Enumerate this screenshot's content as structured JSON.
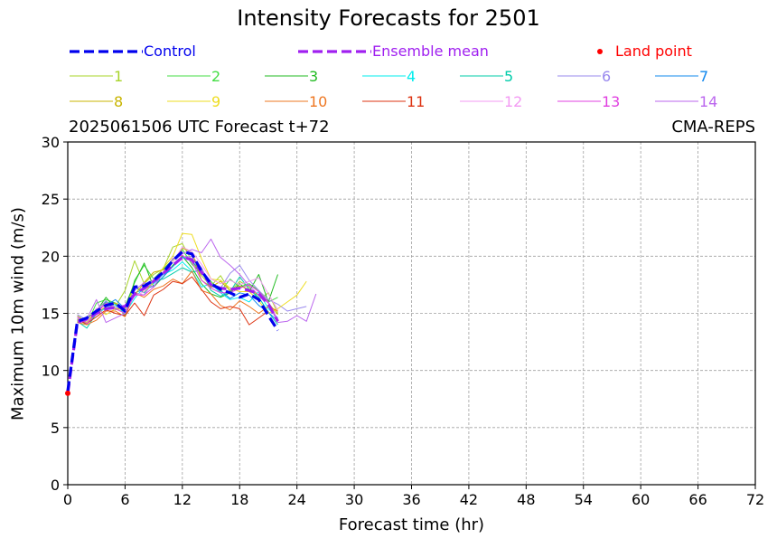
{
  "chart_data": {
    "type": "line",
    "title": "Intensity Forecasts for 2501",
    "subtitle_left": "2025061506 UTC Forecast t+72",
    "subtitle_right": "CMA-REPS",
    "xlabel": "Forecast time (hr)",
    "ylabel": "Maximum 10m wind (m/s)",
    "xlim": [
      0,
      72
    ],
    "ylim": [
      0,
      30
    ],
    "xticks": [
      0,
      6,
      12,
      18,
      24,
      30,
      36,
      42,
      48,
      54,
      60,
      66,
      72
    ],
    "yticks": [
      0,
      5,
      10,
      15,
      20,
      25,
      30
    ],
    "grid": true,
    "legend_position": "top",
    "control": {
      "name": "Control",
      "color": "#0000ee",
      "x": [
        0,
        1,
        2,
        3,
        4,
        5,
        6,
        7,
        8,
        9,
        10,
        11,
        12,
        13,
        14,
        15,
        16,
        17,
        18,
        19,
        20,
        21,
        22
      ],
      "y": [
        8.2,
        14.3,
        14.6,
        15.2,
        15.7,
        15.9,
        15.2,
        17.3,
        17.4,
        17.9,
        18.6,
        19.6,
        20.4,
        20.2,
        18.7,
        17.6,
        17.1,
        16.8,
        16.4,
        16.7,
        16.2,
        14.8,
        13.5
      ]
    },
    "ensemble_mean": {
      "name": "Ensemble mean",
      "color": "#a020f0",
      "x": [
        0,
        1,
        2,
        3,
        4,
        5,
        6,
        7,
        8,
        9,
        10,
        11,
        12,
        13,
        14,
        15,
        16,
        17,
        18,
        19,
        20,
        21,
        22
      ],
      "y": [
        8.0,
        14.2,
        14.5,
        15.0,
        15.4,
        15.5,
        15.6,
        16.7,
        17.2,
        17.8,
        18.5,
        19.2,
        19.9,
        19.7,
        18.6,
        17.5,
        17.2,
        17.1,
        17.2,
        17.0,
        16.7,
        15.8,
        14.3
      ]
    },
    "land_point": {
      "name": "Land point",
      "color": "#ff0000",
      "x": [
        0
      ],
      "y": [
        8.0
      ]
    },
    "members": [
      {
        "name": "1",
        "color": "#a8d42a",
        "x": [
          1,
          2,
          3,
          4,
          5,
          6,
          7,
          8,
          9,
          10,
          11,
          12,
          13,
          14,
          15,
          16,
          17,
          18,
          19,
          20,
          21,
          22
        ],
        "y": [
          14.8,
          14.2,
          15.3,
          16.0,
          15.6,
          17.0,
          19.6,
          17.6,
          18.4,
          18.9,
          20.8,
          21.1,
          19.6,
          18.3,
          17.4,
          18.3,
          16.9,
          17.8,
          17.3,
          16.2,
          16.8,
          15.0
        ]
      },
      {
        "name": "2",
        "color": "#44dd44",
        "x": [
          1,
          2,
          3,
          4,
          5,
          6,
          7,
          8,
          9,
          10,
          11,
          12,
          13,
          14,
          15,
          16,
          17,
          18,
          19,
          20,
          21,
          22
        ],
        "y": [
          14.5,
          14.0,
          15.9,
          16.2,
          15.9,
          14.8,
          17.9,
          19.2,
          18.0,
          18.9,
          19.7,
          20.6,
          19.3,
          18.5,
          17.8,
          16.9,
          18.0,
          17.3,
          17.6,
          17.0,
          16.0,
          16.4
        ]
      },
      {
        "name": "3",
        "color": "#22bb22",
        "x": [
          1,
          2,
          3,
          4,
          5,
          6,
          7,
          8,
          9,
          10,
          11,
          12,
          13,
          14,
          15,
          16,
          17,
          18,
          19,
          20,
          21,
          22
        ],
        "y": [
          14.2,
          14.6,
          15.2,
          16.4,
          15.4,
          15.6,
          17.7,
          19.4,
          17.3,
          18.2,
          19.2,
          20.0,
          19.0,
          17.6,
          16.7,
          16.4,
          16.8,
          17.6,
          16.9,
          18.4,
          16.0,
          18.4
        ]
      },
      {
        "name": "4",
        "color": "#00eeee",
        "x": [
          1,
          2,
          3,
          4,
          5,
          6,
          7,
          8,
          9,
          10,
          11,
          12,
          13,
          14,
          15,
          16,
          17,
          18,
          19,
          20,
          21,
          22
        ],
        "y": [
          14.6,
          14.1,
          14.9,
          15.5,
          15.7,
          15.0,
          16.3,
          17.3,
          17.6,
          18.4,
          18.8,
          19.5,
          18.7,
          17.3,
          17.6,
          16.8,
          16.2,
          16.4,
          16.0,
          16.9,
          15.4,
          14.6
        ]
      },
      {
        "name": "5",
        "color": "#00ccaa",
        "x": [
          1,
          2,
          3,
          4,
          5,
          6,
          7,
          8,
          9,
          10,
          11,
          12,
          13,
          14,
          15,
          16,
          17,
          18,
          19,
          20,
          21,
          22
        ],
        "y": [
          14.3,
          13.7,
          15.0,
          16.0,
          15.8,
          15.3,
          17.3,
          16.8,
          17.9,
          18.0,
          18.5,
          19.0,
          18.6,
          18.8,
          17.0,
          16.5,
          16.9,
          18.2,
          17.1,
          16.4,
          15.1,
          14.0
        ]
      },
      {
        "name": "6",
        "color": "#9988ee",
        "x": [
          1,
          2,
          3,
          4,
          5,
          6,
          7,
          8,
          9,
          10,
          11,
          12,
          13,
          14,
          15,
          16,
          17,
          18,
          19,
          20,
          21,
          22,
          23,
          24,
          25
        ],
        "y": [
          14.9,
          14.4,
          15.3,
          16.1,
          15.3,
          15.5,
          16.8,
          16.6,
          17.9,
          18.4,
          19.1,
          19.9,
          20.0,
          19.0,
          17.3,
          17.2,
          18.5,
          19.2,
          17.9,
          17.0,
          16.2,
          15.8,
          15.2,
          15.4,
          15.6
        ]
      },
      {
        "name": "7",
        "color": "#1188ee",
        "x": [
          1,
          2,
          3,
          4,
          5,
          6,
          7,
          8,
          9,
          10,
          11,
          12,
          13,
          14,
          15,
          16,
          17,
          18,
          19,
          20,
          21,
          22
        ],
        "y": [
          14.4,
          14.2,
          15.4,
          15.7,
          16.2,
          15.4,
          16.8,
          17.1,
          17.4,
          18.2,
          19.1,
          19.9,
          19.6,
          18.6,
          17.6,
          17.0,
          16.3,
          16.8,
          16.6,
          15.7,
          15.1,
          14.3
        ]
      },
      {
        "name": "8",
        "color": "#c8b400",
        "x": [
          1,
          2,
          3,
          4,
          5,
          6,
          7,
          8,
          9,
          10,
          11,
          12,
          13,
          14,
          15,
          16,
          17,
          18,
          19,
          20,
          21,
          22
        ],
        "y": [
          14.5,
          14.3,
          15.0,
          15.6,
          15.9,
          15.1,
          16.6,
          17.7,
          18.6,
          18.8,
          19.5,
          20.7,
          20.4,
          17.9,
          17.3,
          17.8,
          17.0,
          17.4,
          17.1,
          16.6,
          15.9,
          14.9
        ]
      },
      {
        "name": "9",
        "color": "#eedd22",
        "x": [
          1,
          2,
          3,
          4,
          5,
          6,
          7,
          8,
          9,
          10,
          11,
          12,
          13,
          14,
          15,
          16,
          17,
          18,
          19,
          20,
          21,
          22,
          23,
          24,
          25
        ],
        "y": [
          14.3,
          14.2,
          15.4,
          14.9,
          15.4,
          15.3,
          17.4,
          16.9,
          17.7,
          19.0,
          20.0,
          22.0,
          21.9,
          19.8,
          18.0,
          17.9,
          17.2,
          16.9,
          16.9,
          16.1,
          15.0,
          15.4,
          16.0,
          16.6,
          17.8
        ]
      },
      {
        "name": "10",
        "color": "#ee7722",
        "x": [
          1,
          2,
          3,
          4,
          5,
          6,
          7,
          8,
          9,
          10,
          11,
          12,
          13,
          14,
          15,
          16,
          17,
          18,
          19,
          20,
          21,
          22
        ],
        "y": [
          14.2,
          14.0,
          14.4,
          15.2,
          15.2,
          14.7,
          16.8,
          16.4,
          17.1,
          17.4,
          18.0,
          17.6,
          18.7,
          17.0,
          16.7,
          15.7,
          15.3,
          16.1,
          15.6,
          15.0,
          15.6,
          15.2
        ]
      },
      {
        "name": "11",
        "color": "#dd3311",
        "x": [
          1,
          2,
          3,
          4,
          5,
          6,
          7,
          8,
          9,
          10,
          11,
          12,
          13,
          14,
          15,
          16,
          17,
          18,
          19,
          20,
          21
        ],
        "y": [
          14.4,
          14.1,
          14.7,
          15.3,
          15.0,
          14.8,
          15.9,
          14.8,
          16.6,
          17.1,
          17.8,
          17.6,
          18.2,
          17.1,
          16.0,
          15.4,
          15.6,
          15.4,
          14.0,
          14.6,
          15.2
        ]
      },
      {
        "name": "12",
        "color": "#f39af3",
        "x": [
          1,
          2,
          3,
          4,
          5,
          6,
          7,
          8,
          9,
          10,
          11,
          12,
          13,
          14,
          15,
          16,
          17,
          18,
          19,
          20,
          21,
          22
        ],
        "y": [
          14.6,
          14.3,
          15.4,
          15.8,
          15.6,
          15.2,
          16.5,
          16.9,
          18.0,
          18.6,
          19.5,
          20.8,
          20.4,
          19.3,
          18.0,
          17.6,
          17.9,
          17.5,
          17.8,
          18.1,
          16.7,
          15.3
        ]
      },
      {
        "name": "13",
        "color": "#e040e0",
        "x": [
          1,
          2,
          3,
          4,
          5,
          6,
          7,
          8,
          9,
          10,
          11,
          12,
          13,
          14,
          15,
          16,
          17,
          18,
          19,
          20,
          21,
          22
        ],
        "y": [
          14.7,
          14.1,
          15.0,
          15.9,
          15.4,
          15.0,
          16.6,
          16.6,
          17.3,
          18.6,
          19.8,
          20.1,
          19.5,
          17.9,
          17.2,
          16.8,
          16.8,
          17.2,
          17.5,
          16.9,
          16.0,
          14.4
        ]
      },
      {
        "name": "14",
        "color": "#bb66ee",
        "x": [
          1,
          2,
          3,
          4,
          5,
          6,
          7,
          8,
          9,
          10,
          11,
          12,
          13,
          14,
          15,
          16,
          17,
          18,
          19,
          20,
          21,
          22,
          23,
          24,
          25,
          26
        ],
        "y": [
          14.4,
          14.5,
          16.2,
          14.2,
          14.6,
          15.0,
          17.0,
          17.7,
          17.3,
          18.6,
          19.8,
          20.2,
          20.6,
          20.3,
          21.5,
          19.9,
          19.2,
          18.4,
          17.4,
          16.6,
          15.9,
          14.2,
          14.3,
          14.8,
          14.3,
          16.7
        ]
      }
    ]
  }
}
